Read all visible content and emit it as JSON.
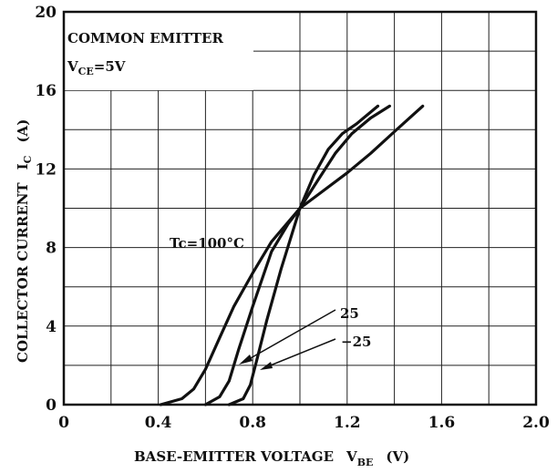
{
  "chart_data": {
    "type": "line",
    "annotation_box": {
      "line1": "COMMON EMITTER",
      "line2_main": "V",
      "line2_sub": "CE",
      "line2_rest": "=5V"
    },
    "xlabel": "BASE-EMITTER VOLTAGE",
    "xlabel_symbol": "V",
    "xlabel_symbol_sub": "BE",
    "xlabel_unit": "(V)",
    "ylabel": "COLLECTOR CURRENT",
    "ylabel_symbol": "I",
    "ylabel_symbol_sub": "C",
    "ylabel_unit": "(A)",
    "xlim": [
      0,
      2.0
    ],
    "ylim": [
      0,
      20
    ],
    "x_ticks": [
      "0",
      "0.4",
      "0.8",
      "1.2",
      "1.6",
      "2.0"
    ],
    "y_ticks": [
      "0",
      "4",
      "8",
      "12",
      "16",
      "20"
    ],
    "grid": true,
    "series": [
      {
        "name": "Tc=100°C",
        "x": [
          0.41,
          0.5,
          0.55,
          0.6,
          0.66,
          0.72,
          0.8,
          0.88,
          1.0,
          1.1,
          1.2,
          1.3,
          1.4,
          1.52
        ],
        "y": [
          0.0,
          0.3,
          0.8,
          1.8,
          3.4,
          5.0,
          6.7,
          8.3,
          10.0,
          10.9,
          11.8,
          12.8,
          13.9,
          15.2
        ]
      },
      {
        "name": "25",
        "x": [
          0.6,
          0.66,
          0.7,
          0.74,
          0.8,
          0.88,
          0.95,
          1.0,
          1.08,
          1.15,
          1.22,
          1.3,
          1.38
        ],
        "y": [
          0.0,
          0.4,
          1.2,
          2.8,
          5.0,
          7.8,
          9.2,
          10.0,
          11.5,
          12.8,
          13.8,
          14.6,
          15.2
        ]
      },
      {
        "name": "−25",
        "x": [
          0.7,
          0.76,
          0.79,
          0.82,
          0.86,
          0.92,
          1.0,
          1.06,
          1.12,
          1.18,
          1.24,
          1.28,
          1.33
        ],
        "y": [
          0.0,
          0.3,
          1.0,
          2.4,
          4.3,
          6.9,
          10.0,
          11.7,
          13.0,
          13.8,
          14.3,
          14.7,
          15.2
        ]
      }
    ],
    "labels": {
      "tc": "Tc=100°C",
      "s25": "25",
      "sm25": "−25"
    }
  }
}
